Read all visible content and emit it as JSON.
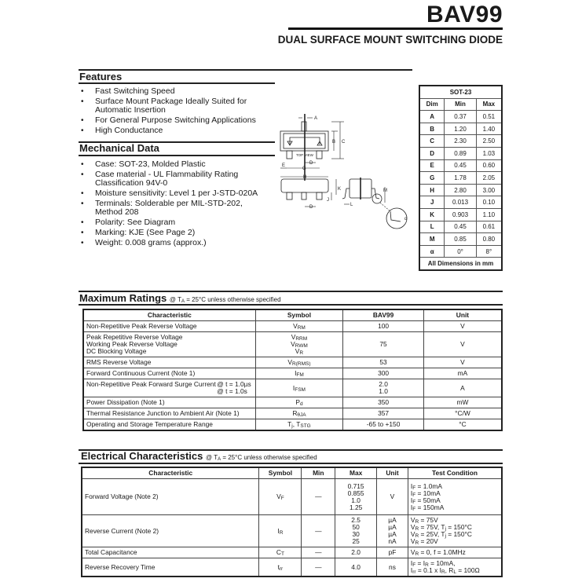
{
  "header": {
    "title": "BAV99",
    "subtitle": "DUAL SURFACE MOUNT SWITCHING DIODE"
  },
  "features": {
    "heading": "Features",
    "items": [
      "Fast Switching Speed",
      "Surface Mount Package Ideally Suited for Automatic Insertion",
      "For General Purpose Switching Applications",
      "High Conductance"
    ]
  },
  "mechanical": {
    "heading": "Mechanical Data",
    "items": [
      "Case: SOT-23, Molded Plastic",
      "Case material - UL Flammability Rating Classification 94V-0",
      "Moisture sensitivity: Level 1 per J-STD-020A",
      "Terminals: Solderable per MIL-STD-202, Method 208",
      "Polarity: See Diagram",
      "Marking:  KJE (See Page 2)",
      "Weight: 0.008 grams (approx.)"
    ]
  },
  "diagram": {
    "top_view": "TOP VIEW",
    "labels": {
      "A": "A",
      "B": "B",
      "C": "C",
      "D": "D",
      "E": "E",
      "G": "G",
      "H": "H",
      "J": "J",
      "K": "K",
      "L": "L",
      "M": "M",
      "alpha": "α"
    }
  },
  "package_table": {
    "title": "SOT-23",
    "headers": [
      "Dim",
      "Min",
      "Max"
    ],
    "rows": [
      [
        "A",
        "0.37",
        "0.51"
      ],
      [
        "B",
        "1.20",
        "1.40"
      ],
      [
        "C",
        "2.30",
        "2.50"
      ],
      [
        "D",
        "0.89",
        "1.03"
      ],
      [
        "E",
        "0.45",
        "0.60"
      ],
      [
        "G",
        "1.78",
        "2.05"
      ],
      [
        "H",
        "2.80",
        "3.00"
      ],
      [
        "J",
        "0.013",
        "0.10"
      ],
      [
        "K",
        "0.903",
        "1.10"
      ],
      [
        "L",
        "0.45",
        "0.61"
      ],
      [
        "M",
        "0.85",
        "0.80"
      ],
      [
        "α",
        "0°",
        "8°"
      ]
    ],
    "footer": "All Dimensions in mm"
  },
  "max_ratings": {
    "heading": "Maximum Ratings",
    "condition": [
      [
        "@ T",
        {
          "sub": "A"
        },
        " = 25°C unless otherwise specified"
      ]
    ],
    "headers": [
      "Characteristic",
      "Symbol",
      "BAV99",
      "Unit"
    ],
    "rows": [
      {
        "characteristic": [
          [
            "Non-Repetitive Peak Reverse Voltage"
          ]
        ],
        "symbol": [
          [
            "V",
            {
              "sub": "RM"
            }
          ]
        ],
        "value": [
          [
            "100"
          ]
        ],
        "unit": [
          [
            "V"
          ]
        ]
      },
      {
        "characteristic": [
          [
            "Peak Repetitive Reverse Voltage"
          ],
          [
            "Working Peak Reverse Voltage"
          ],
          [
            "DC Blocking Voltage"
          ]
        ],
        "symbol": [
          [
            "V",
            {
              "sub": "RRM"
            }
          ],
          [
            "V",
            {
              "sub": "RWM"
            }
          ],
          [
            "V",
            {
              "sub": "R"
            }
          ]
        ],
        "value": [
          [
            "75"
          ]
        ],
        "unit": [
          [
            "V"
          ]
        ]
      },
      {
        "characteristic": [
          [
            "RMS Reverse Voltage"
          ]
        ],
        "symbol": [
          [
            "V",
            {
              "sub": "R(RMS)"
            }
          ]
        ],
        "value": [
          [
            "53"
          ]
        ],
        "unit": [
          [
            "V"
          ]
        ]
      },
      {
        "characteristic": [
          [
            "Forward Continuous Current (Note 1)"
          ]
        ],
        "symbol": [
          [
            "I",
            {
              "sub": "FM"
            }
          ]
        ],
        "value": [
          [
            "300"
          ]
        ],
        "unit": [
          [
            "mA"
          ]
        ]
      },
      {
        "characteristic": [
          [
            "Non-Repetitive Peak Forward Surge Current"
          ]
        ],
        "note": [
          [
            "@ t = 1.0µs"
          ],
          [
            "@ t = 1.0s"
          ]
        ],
        "symbol": [
          [
            "I",
            {
              "sub": "FSM"
            }
          ]
        ],
        "value": [
          [
            "2.0"
          ],
          [
            "1.0"
          ]
        ],
        "unit": [
          [
            "A"
          ]
        ]
      },
      {
        "characteristic": [
          [
            "Power Dissipation (Note 1)"
          ]
        ],
        "symbol": [
          [
            "P",
            {
              "sub": "d"
            }
          ]
        ],
        "value": [
          [
            "350"
          ]
        ],
        "unit": [
          [
            "mW"
          ]
        ]
      },
      {
        "characteristic": [
          [
            "Thermal Resistance Junction to Ambient Air (Note 1)"
          ]
        ],
        "symbol": [
          [
            "R",
            {
              "sub": "θJA"
            }
          ]
        ],
        "value": [
          [
            "357"
          ]
        ],
        "unit": [
          [
            "°C/W"
          ]
        ]
      },
      {
        "characteristic": [
          [
            "Operating and Storage Temperature Range"
          ]
        ],
        "symbol": [
          [
            "T",
            {
              "sub": "j"
            },
            ", T",
            {
              "sub": "STG"
            }
          ]
        ],
        "value": [
          [
            "-65 to +150"
          ]
        ],
        "unit": [
          [
            "°C"
          ]
        ]
      }
    ]
  },
  "electrical": {
    "heading": "Electrical Characteristics",
    "condition": [
      [
        "@ T",
        {
          "sub": "A"
        },
        " = 25°C unless otherwise specified"
      ]
    ],
    "headers": [
      "Characteristic",
      "Symbol",
      "Min",
      "Max",
      "Unit",
      "Test Condition"
    ],
    "rows": [
      {
        "characteristic": [
          [
            "Forward Voltage (Note 2)"
          ]
        ],
        "symbol": [
          [
            "V",
            {
              "sub": "F"
            }
          ]
        ],
        "min": [
          [
            "—"
          ]
        ],
        "max": [
          [
            "0.715"
          ],
          [
            "0.855"
          ],
          [
            "1.0"
          ],
          [
            "1.25"
          ]
        ],
        "unit": [
          [
            "V"
          ]
        ],
        "condition": [
          [
            "I",
            {
              "sub": "F"
            },
            " = 1.0mA"
          ],
          [
            "I",
            {
              "sub": "F"
            },
            " = 10mA"
          ],
          [
            "I",
            {
              "sub": "F"
            },
            " = 50mA"
          ],
          [
            "I",
            {
              "sub": "F"
            },
            " = 150mA"
          ]
        ]
      },
      {
        "characteristic": [
          [
            "Reverse Current (Note 2)"
          ]
        ],
        "symbol": [
          [
            "I",
            {
              "sub": "R"
            }
          ]
        ],
        "min": [
          [
            "—"
          ]
        ],
        "max": [
          [
            "2.5"
          ],
          [
            "50"
          ],
          [
            "30"
          ],
          [
            "25"
          ]
        ],
        "unit": [
          [
            "µA"
          ],
          [
            "µA"
          ],
          [
            "µA"
          ],
          [
            "nA"
          ]
        ],
        "condition": [
          [
            "V",
            {
              "sub": "R"
            },
            " = 75V"
          ],
          [
            "V",
            {
              "sub": "R"
            },
            " = 75V, T",
            {
              "sub": "j"
            },
            " = 150°C"
          ],
          [
            "V",
            {
              "sub": "R"
            },
            " = 25V, T",
            {
              "sub": "j"
            },
            " = 150°C"
          ],
          [
            "V",
            {
              "sub": "R"
            },
            " = 20V"
          ]
        ]
      },
      {
        "characteristic": [
          [
            "Total Capacitance"
          ]
        ],
        "symbol": [
          [
            "C",
            {
              "sub": "T"
            }
          ]
        ],
        "min": [
          [
            "—"
          ]
        ],
        "max": [
          [
            "2.0"
          ]
        ],
        "unit": [
          [
            "pF"
          ]
        ],
        "condition": [
          [
            "V",
            {
              "sub": "R"
            },
            " = 0, f = 1.0MHz"
          ]
        ]
      },
      {
        "characteristic": [
          [
            "Reverse Recovery Time"
          ]
        ],
        "symbol": [
          [
            "t",
            {
              "sub": "rr"
            }
          ]
        ],
        "min": [
          [
            "—"
          ]
        ],
        "max": [
          [
            "4.0"
          ]
        ],
        "unit": [
          [
            "ns"
          ]
        ],
        "condition": [
          [
            "I",
            {
              "sub": "F"
            },
            " = I",
            {
              "sub": "R"
            },
            " = 10mA,"
          ],
          [
            "I",
            {
              "sub": "rr"
            },
            " = 0.1 x I",
            {
              "sub": "R"
            },
            ", R",
            {
              "sub": "L"
            },
            " = 100Ω"
          ]
        ]
      }
    ]
  }
}
